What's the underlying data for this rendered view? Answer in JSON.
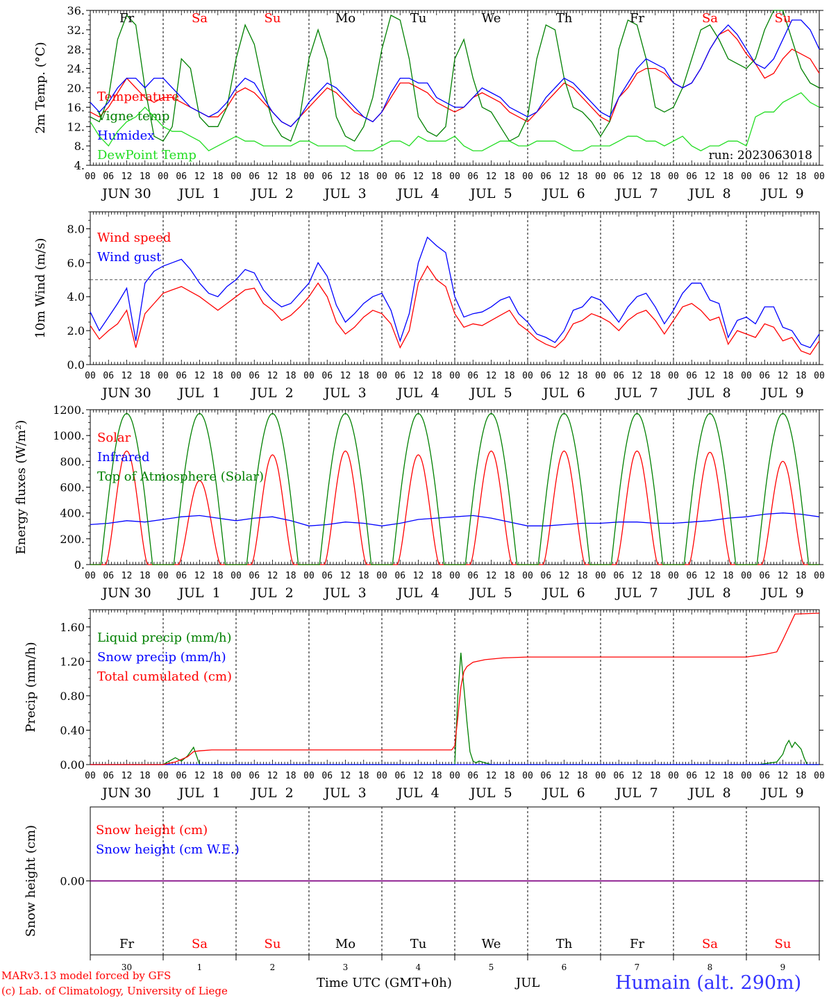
{
  "colors": {
    "red": "#ff0000",
    "green": "#008000",
    "blue": "#0000ff",
    "lime": "#22dd22",
    "purple": "#800080",
    "dark": "#000000",
    "footer_blue": "#3333ff"
  },
  "x_axis": {
    "days": 10,
    "hour_labels": [
      "00",
      "06",
      "12",
      "18"
    ],
    "end_label": "00",
    "date_labels": [
      "JUN 30",
      "JUL  1",
      "JUL  2",
      "JUL  3",
      "JUL  4",
      "JUL  5",
      "JUL  6",
      "JUL  7",
      "JUL  8",
      "JUL  9"
    ],
    "weekdays": [
      "Fr",
      "Sa",
      "Su",
      "Mo",
      "Tu",
      "We",
      "Th",
      "Fr",
      "Sa",
      "Su"
    ],
    "weekday_colors": [
      "dark",
      "red",
      "red",
      "dark",
      "dark",
      "dark",
      "dark",
      "dark",
      "red",
      "red"
    ],
    "day_numbers": [
      "30",
      "1",
      "2",
      "3",
      "4",
      "5",
      "6",
      "7",
      "8",
      "9"
    ]
  },
  "chart_data": [
    {
      "type": "line",
      "id": "temperature",
      "ylabel": "2m Temp. (°C)",
      "ylim": [
        4,
        36
      ],
      "yticks": [
        4,
        8,
        12,
        16,
        20,
        24,
        28,
        32,
        36
      ],
      "ytick_labels": [
        "4.",
        "8.",
        "12.",
        "16.",
        "20.",
        "24.",
        "28.",
        "32.",
        "36."
      ],
      "annotation": "run: 2023063018",
      "x_hours": [
        0,
        3,
        6,
        9,
        12,
        15,
        18,
        21,
        24,
        27,
        30,
        33,
        36,
        39,
        42,
        45,
        48,
        51,
        54,
        57,
        60,
        63,
        66,
        69,
        72,
        75,
        78,
        81,
        84,
        87,
        90,
        93,
        96,
        99,
        102,
        105,
        108,
        111,
        114,
        117,
        120,
        123,
        126,
        129,
        132,
        135,
        138,
        141,
        144,
        147,
        150,
        153,
        156,
        159,
        162,
        165,
        168,
        171,
        174,
        177,
        180,
        183,
        186,
        189,
        192,
        195,
        198,
        201,
        204,
        207,
        210,
        213,
        216,
        219,
        222,
        225,
        228,
        231,
        234,
        237,
        240
      ],
      "series": [
        {
          "name": "Temperature",
          "color": "red",
          "values": [
            15,
            14,
            16,
            19,
            22,
            20,
            18,
            17,
            18,
            18,
            17,
            16,
            15,
            14,
            14,
            16,
            19,
            20,
            19,
            17,
            15,
            13,
            12,
            14,
            16,
            18,
            20,
            19,
            17,
            15,
            14,
            13,
            15,
            18,
            21,
            21,
            20,
            19,
            17,
            16,
            15,
            16,
            18,
            19,
            18,
            17,
            15,
            14,
            13,
            15,
            17,
            19,
            21,
            20,
            18,
            16,
            14,
            13,
            18,
            20,
            23,
            24,
            24,
            23,
            21,
            20,
            21,
            24,
            28,
            31,
            32,
            30,
            27,
            25,
            22,
            23,
            26,
            28,
            27,
            26,
            23
          ]
        },
        {
          "name": "Vigne temp",
          "color": "green",
          "values": [
            14,
            13,
            18,
            30,
            35,
            33,
            20,
            10,
            9,
            12,
            26,
            24,
            14,
            12,
            12,
            16,
            26,
            33,
            29,
            20,
            13,
            10,
            9,
            14,
            26,
            32,
            26,
            14,
            10,
            9,
            12,
            18,
            28,
            35,
            34,
            26,
            14,
            11,
            10,
            12,
            26,
            30,
            22,
            16,
            15,
            12,
            9,
            10,
            14,
            26,
            33,
            32,
            22,
            16,
            15,
            13,
            10,
            13,
            28,
            34,
            33,
            26,
            16,
            15,
            16,
            20,
            26,
            32,
            33,
            30,
            26,
            25,
            24,
            26,
            32,
            36,
            36,
            30,
            24,
            21,
            20
          ]
        },
        {
          "name": "Humidex",
          "color": "blue",
          "values": [
            17,
            15,
            17,
            20,
            22,
            22,
            20,
            22,
            22,
            20,
            18,
            16,
            15,
            14,
            15,
            17,
            20,
            22,
            21,
            18,
            15,
            13,
            12,
            14,
            17,
            19,
            21,
            20,
            18,
            16,
            14,
            13,
            15,
            19,
            22,
            22,
            21,
            21,
            18,
            17,
            16,
            16,
            18,
            20,
            19,
            18,
            16,
            15,
            14,
            15,
            18,
            20,
            22,
            21,
            19,
            17,
            15,
            14,
            18,
            21,
            24,
            26,
            25,
            24,
            21,
            20,
            21,
            24,
            28,
            31,
            33,
            31,
            28,
            25,
            24,
            26,
            30,
            34,
            34,
            32,
            28
          ]
        },
        {
          "name": "DewPoint Temp",
          "color": "lime",
          "values": [
            13,
            10,
            8,
            11,
            13,
            14,
            16,
            14,
            12,
            11,
            11,
            10,
            9,
            7,
            8,
            9,
            10,
            9,
            9,
            8,
            8,
            8,
            8,
            9,
            9,
            8,
            8,
            8,
            8,
            7,
            7,
            7,
            8,
            9,
            9,
            8,
            10,
            9,
            9,
            9,
            10,
            8,
            7,
            7,
            8,
            9,
            9,
            8,
            8,
            9,
            9,
            9,
            8,
            7,
            7,
            8,
            8,
            8,
            9,
            10,
            10,
            9,
            9,
            8,
            9,
            10,
            8,
            7,
            8,
            8,
            9,
            9,
            8,
            14,
            15,
            15,
            17,
            18,
            19,
            17,
            16
          ]
        }
      ]
    },
    {
      "type": "line",
      "id": "wind",
      "ylabel": "10m Wind (m/s)",
      "ylim": [
        0,
        9
      ],
      "yticks": [
        0,
        2,
        4,
        6,
        8
      ],
      "ytick_labels": [
        "0.0",
        "2.0",
        "4.0",
        "6.0",
        "8.0"
      ],
      "reference_line": 5,
      "x_hours": [
        0,
        3,
        6,
        9,
        12,
        15,
        18,
        21,
        24,
        27,
        30,
        33,
        36,
        39,
        42,
        45,
        48,
        51,
        54,
        57,
        60,
        63,
        66,
        69,
        72,
        75,
        78,
        81,
        84,
        87,
        90,
        93,
        96,
        99,
        102,
        105,
        108,
        111,
        114,
        117,
        120,
        123,
        126,
        129,
        132,
        135,
        138,
        141,
        144,
        147,
        150,
        153,
        156,
        159,
        162,
        165,
        168,
        171,
        174,
        177,
        180,
        183,
        186,
        189,
        192,
        195,
        198,
        201,
        204,
        207,
        210,
        213,
        216,
        219,
        222,
        225,
        228,
        231,
        234,
        237,
        240
      ],
      "series": [
        {
          "name": "Wind speed",
          "color": "red",
          "values": [
            2.3,
            1.5,
            2.0,
            2.4,
            3.2,
            1.0,
            3.0,
            3.6,
            4.2,
            4.4,
            4.6,
            4.3,
            4.0,
            3.6,
            3.2,
            3.6,
            4.0,
            4.4,
            4.5,
            3.6,
            3.2,
            2.6,
            2.9,
            3.4,
            4.0,
            4.8,
            4.0,
            2.5,
            1.8,
            2.2,
            2.8,
            3.2,
            3.0,
            2.4,
            1.0,
            2.0,
            4.8,
            5.8,
            5.0,
            4.6,
            3.0,
            2.2,
            2.4,
            2.3,
            2.6,
            2.9,
            3.2,
            2.4,
            2.0,
            1.5,
            1.2,
            1.0,
            1.5,
            2.4,
            2.6,
            3.0,
            2.8,
            2.5,
            2.0,
            2.6,
            3.0,
            3.2,
            2.6,
            1.8,
            2.6,
            3.4,
            3.6,
            3.2,
            2.6,
            2.8,
            1.2,
            2.0,
            1.8,
            1.6,
            2.4,
            2.2,
            1.4,
            1.6,
            0.8,
            0.6,
            1.4
          ]
        },
        {
          "name": "Wind gust",
          "color": "blue",
          "values": [
            3.1,
            2.0,
            2.8,
            3.6,
            4.5,
            1.4,
            4.8,
            5.5,
            5.8,
            6.0,
            6.2,
            5.6,
            4.8,
            4.2,
            4.0,
            4.6,
            5.0,
            5.6,
            5.4,
            4.4,
            3.8,
            3.4,
            3.6,
            4.2,
            4.8,
            6.0,
            5.2,
            3.5,
            2.5,
            3.0,
            3.6,
            4.0,
            4.2,
            3.2,
            1.4,
            3.0,
            6.0,
            7.5,
            7.0,
            6.6,
            4.0,
            2.8,
            3.0,
            3.1,
            3.4,
            3.8,
            4.0,
            3.0,
            2.5,
            1.8,
            1.6,
            1.3,
            2.0,
            3.2,
            3.4,
            4.0,
            3.8,
            3.2,
            2.5,
            3.4,
            4.0,
            4.2,
            3.4,
            2.4,
            3.2,
            4.2,
            4.8,
            4.8,
            3.8,
            3.6,
            1.6,
            2.6,
            2.8,
            2.4,
            3.4,
            3.4,
            2.2,
            2.0,
            1.2,
            1.0,
            1.8
          ]
        }
      ]
    },
    {
      "type": "line",
      "id": "radiation",
      "ylabel": "Energy fluxes (W/m²)",
      "ylim": [
        0,
        1200
      ],
      "yticks": [
        0,
        200,
        400,
        600,
        800,
        1000,
        1200
      ],
      "ytick_labels": [
        "0.",
        "200.",
        "400.",
        "600.",
        "800.",
        "1000.",
        "1200."
      ],
      "series": [
        {
          "name": "Solar",
          "color": "red",
          "daily_peaks": [
            880,
            650,
            850,
            880,
            850,
            880,
            880,
            880,
            870,
            800
          ]
        },
        {
          "name": "Infrared",
          "color": "blue",
          "x_hours": [
            0,
            6,
            12,
            18,
            24,
            30,
            36,
            42,
            48,
            54,
            60,
            66,
            72,
            78,
            84,
            90,
            96,
            102,
            108,
            114,
            120,
            126,
            132,
            138,
            144,
            150,
            156,
            162,
            168,
            174,
            180,
            186,
            192,
            198,
            204,
            210,
            216,
            222,
            228,
            234,
            240
          ],
          "values": [
            310,
            320,
            340,
            330,
            350,
            370,
            380,
            360,
            340,
            360,
            370,
            340,
            300,
            310,
            330,
            320,
            300,
            320,
            350,
            360,
            370,
            380,
            360,
            330,
            300,
            300,
            310,
            320,
            320,
            330,
            330,
            320,
            320,
            330,
            340,
            360,
            370,
            390,
            400,
            390,
            370
          ]
        },
        {
          "name": "Top of Atmosphere (Solar)",
          "color": "green",
          "daily_peaks": [
            1170,
            1170,
            1170,
            1170,
            1170,
            1170,
            1170,
            1170,
            1170,
            1170
          ]
        }
      ]
    },
    {
      "type": "line",
      "id": "precip",
      "ylabel": "Precip (mm/h)",
      "ylim": [
        0,
        1.8
      ],
      "yticks": [
        0,
        0.4,
        0.8,
        1.2,
        1.6
      ],
      "ytick_labels": [
        "0.00",
        "0.40",
        "0.80",
        "1.20",
        "1.60"
      ],
      "series": [
        {
          "name": "Liquid precip (mm/h)",
          "color": "green",
          "x_hours": [
            0,
            24,
            28,
            30,
            32,
            34,
            36,
            120,
            121,
            122,
            123,
            124,
            125,
            126,
            127,
            128,
            132,
            140,
            216,
            220,
            226,
            228,
            229,
            230,
            231,
            232,
            233,
            234,
            235,
            236,
            240
          ],
          "values": [
            0,
            0,
            0.08,
            0.04,
            0.1,
            0.2,
            0,
            0,
            0.8,
            1.3,
            0.9,
            0.5,
            0.15,
            0.04,
            0.02,
            0.04,
            0,
            0,
            0,
            0,
            0.03,
            0.12,
            0.22,
            0.28,
            0.2,
            0.26,
            0.22,
            0.18,
            0.08,
            0,
            0
          ]
        },
        {
          "name": "Snow precip (mm/h)",
          "color": "blue",
          "x_hours": [
            0,
            240
          ],
          "values": [
            0,
            0
          ]
        },
        {
          "name": "Total cumulated (cm)",
          "color": "red",
          "x_hours": [
            0,
            24,
            28,
            32,
            34,
            36,
            40,
            119,
            120,
            121,
            122,
            123,
            124,
            126,
            130,
            136,
            144,
            216,
            222,
            226,
            228,
            232,
            240
          ],
          "values": [
            0,
            0,
            0.03,
            0.09,
            0.15,
            0.16,
            0.17,
            0.17,
            0.22,
            0.55,
            0.9,
            1.08,
            1.14,
            1.19,
            1.22,
            1.24,
            1.25,
            1.25,
            1.28,
            1.31,
            1.45,
            1.75,
            1.76
          ]
        }
      ]
    },
    {
      "type": "line",
      "id": "snow",
      "ylabel": "Snow height (cm)",
      "ylim": [
        -1,
        1
      ],
      "yticks": [
        0
      ],
      "ytick_labels": [
        "0.00"
      ],
      "series": [
        {
          "name": "Snow height (cm)",
          "color": "red",
          "x_hours": [
            0,
            240
          ],
          "values": [
            0,
            0
          ]
        },
        {
          "name": "Snow height (cm W.E.)",
          "color": "blue",
          "x_hours": [
            0,
            240
          ],
          "values": [
            0,
            0
          ]
        }
      ]
    }
  ],
  "footer": {
    "model_line": "MARv3.13 model forced by GFS",
    "lab_line": "(c) Lab. of Climatology, University of Liege",
    "time_label": "Time UTC (GMT+0h)",
    "month_label": "JUL",
    "station": "Humain (alt. 290m)"
  }
}
